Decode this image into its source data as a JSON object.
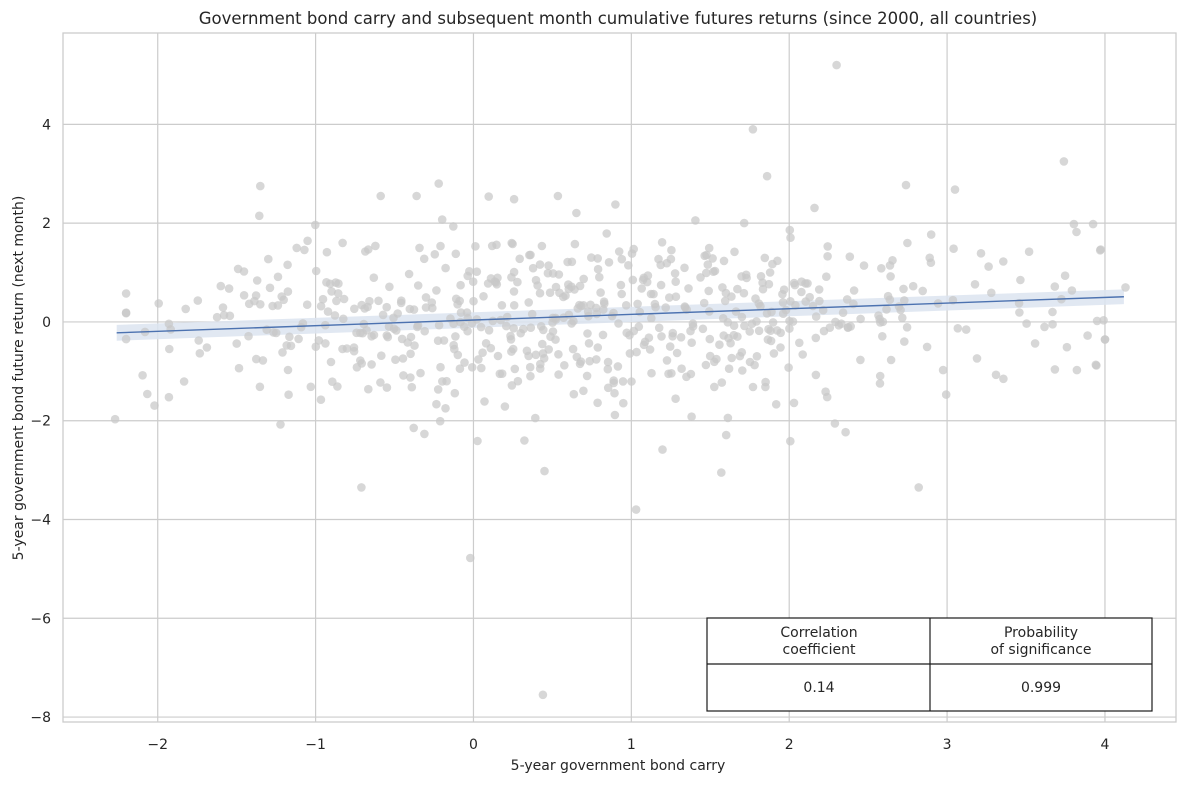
{
  "chart_data": {
    "type": "scatter",
    "title": "Government bond carry and subsequent month cumulative futures returns (since 2000, all countries)",
    "xlabel": "5-year government bond carry",
    "ylabel": "5-year government bond future return (next month)",
    "xlim": [
      -2.6,
      4.45
    ],
    "ylim": [
      -8.1,
      5.85
    ],
    "x_ticks": [
      -2,
      -1,
      0,
      1,
      2,
      3,
      4
    ],
    "x_tick_labels": [
      "−2",
      "−1",
      "0",
      "1",
      "2",
      "3",
      "4"
    ],
    "y_ticks": [
      -8,
      -6,
      -4,
      -2,
      0,
      2,
      4
    ],
    "y_tick_labels": [
      "−8",
      "−6",
      "−4",
      "−2",
      "0",
      "2",
      "4"
    ],
    "grid": true,
    "point_color": "#c8c8c8",
    "line_color": "#4c72b0",
    "band_color": "#dce4f0",
    "regression": {
      "x": [
        -2.26,
        4.12
      ],
      "y": [
        -0.22,
        0.51
      ],
      "ci_lower": [
        -0.38,
        0.36
      ],
      "ci_upper": [
        -0.06,
        0.66
      ]
    },
    "outliers": [
      {
        "x": 2.3,
        "y": 5.2
      },
      {
        "x": 1.77,
        "y": 3.9
      },
      {
        "x": 3.74,
        "y": 3.25
      },
      {
        "x": 0.44,
        "y": -7.55
      },
      {
        "x": -0.02,
        "y": -4.78
      },
      {
        "x": 1.03,
        "y": -3.8
      },
      {
        "x": -0.71,
        "y": -3.35
      },
      {
        "x": 2.82,
        "y": -3.35
      },
      {
        "x": 0.45,
        "y": -3.02
      },
      {
        "x": 1.57,
        "y": -3.05
      },
      {
        "x": -2.27,
        "y": -1.97
      },
      {
        "x": -1.35,
        "y": 2.75
      },
      {
        "x": -0.22,
        "y": 2.8
      },
      {
        "x": 2.74,
        "y": 2.77
      },
      {
        "x": 1.86,
        "y": 2.95
      },
      {
        "x": 3.82,
        "y": 1.82
      },
      {
        "x": 3.97,
        "y": 1.45
      },
      {
        "x": 4.13,
        "y": 0.7
      },
      {
        "x": 3.95,
        "y": 0.02
      },
      {
        "x": 3.05,
        "y": 2.68
      }
    ],
    "cloud": {
      "n": 640,
      "x_min": -2.2,
      "x_max": 4.0,
      "x_center": 0.65,
      "x_spread": 1.15,
      "y_spread": 0.95,
      "y_range": [
        -2.7,
        2.55
      ]
    },
    "table": {
      "headers": [
        "Correlation\ncoefficient",
        "Probability\nof significance"
      ],
      "values": [
        "0.14",
        "0.999"
      ]
    }
  }
}
